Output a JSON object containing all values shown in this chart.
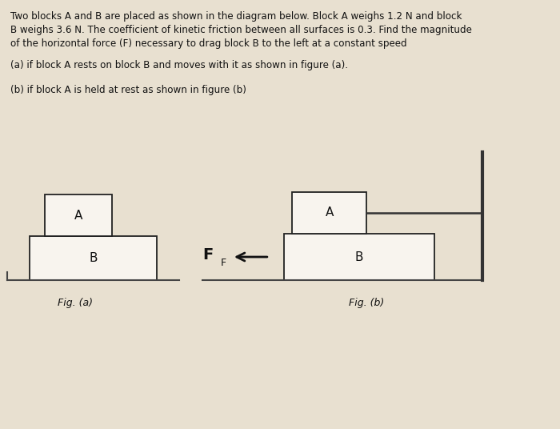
{
  "background_color": "#e8e0d0",
  "text_color": "#111111",
  "title_lines": [
    "Two blocks A and B are placed as shown in the diagram below. Block A weighs 1.2 N and block",
    "B weighs 3.6 N. The coefficient of kinetic friction between all surfaces is 0.3. Find the magnitude",
    "of the horizontal force (F) necessary to drag block B to the left at a constant speed"
  ],
  "subtext_a": "(a) if block A rests on block B and moves with it as shown in figure (a).",
  "subtext_b": "(b) if block A is held at rest as shown in figure (b)",
  "fig_a_label": "Fig. (a)",
  "fig_b_label": "Fig. (b)",
  "block_fill": "#f8f4ee",
  "block_edge": "#222222",
  "ground_color": "#444444",
  "wall_color": "#333333",
  "arrow_color": "#111111"
}
